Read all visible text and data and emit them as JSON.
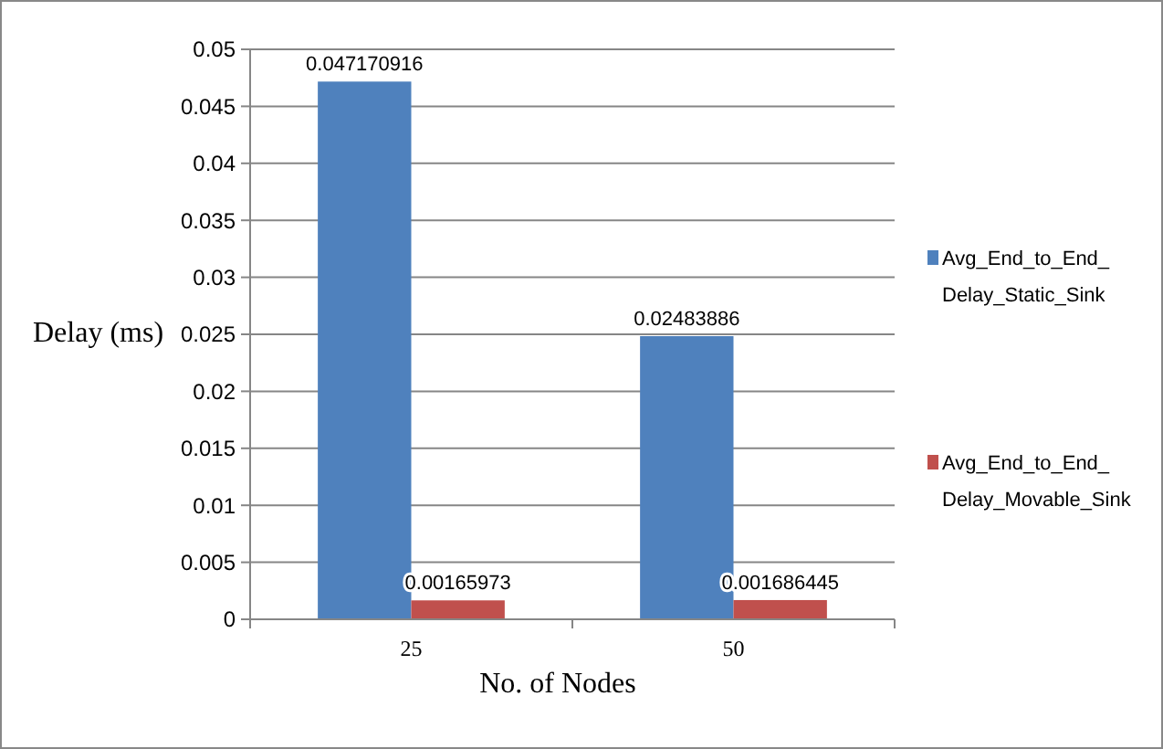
{
  "chart_data": {
    "type": "bar",
    "xlabel": "No. of Nodes",
    "ylabel": "Delay (ms)",
    "categories": [
      "25",
      "50"
    ],
    "series": [
      {
        "name": "Avg_End_to_End_Delay_Static_Sink",
        "color": "#4f81bd",
        "values": [
          0.047170916,
          0.02483886
        ]
      },
      {
        "name": "Avg_End_to_End_Delay_Movable_Sink",
        "color": "#c0504d",
        "values": [
          0.00165973,
          0.001686445
        ]
      }
    ],
    "ylim": [
      0,
      0.05
    ],
    "yticks": [
      0,
      0.005,
      0.01,
      0.015,
      0.02,
      0.025,
      0.03,
      0.035,
      0.04,
      0.045,
      0.05
    ],
    "grid": "y",
    "data_labels": true,
    "legend": "right"
  }
}
